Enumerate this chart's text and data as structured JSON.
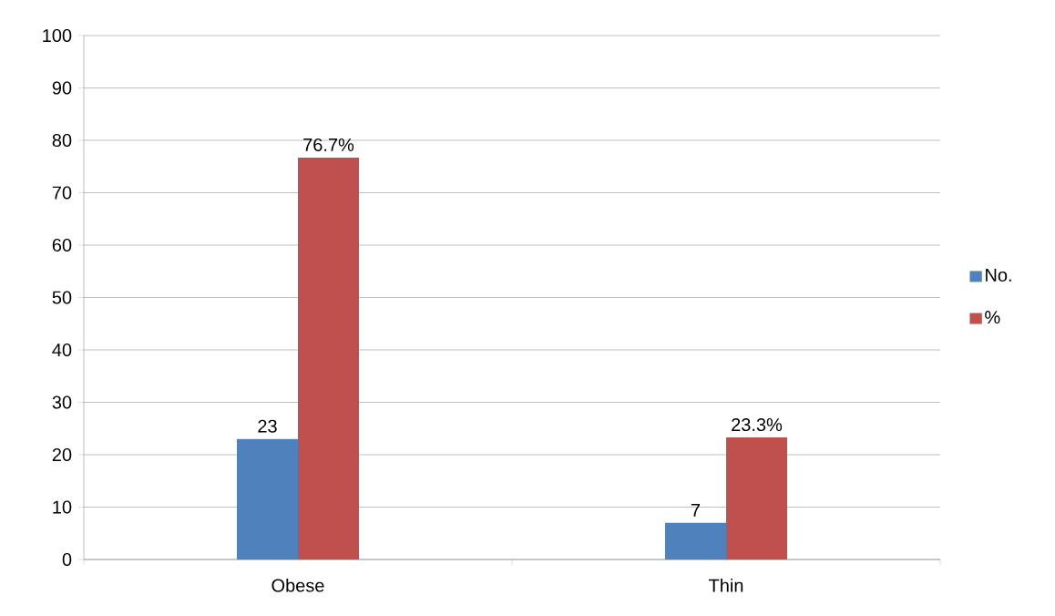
{
  "chart_data": {
    "type": "bar",
    "categories": [
      "Obese",
      "Thin"
    ],
    "series": [
      {
        "name": "No.",
        "color": "#4f81bd",
        "values": [
          23,
          7
        ],
        "value_labels": [
          "23",
          "7"
        ]
      },
      {
        "name": "%",
        "color": "#c0504d",
        "values": [
          76.7,
          23.3
        ],
        "value_labels": [
          "76.7%",
          "23.3%"
        ]
      }
    ],
    "ylim": [
      0,
      100
    ],
    "yticks": [
      0,
      10,
      20,
      30,
      40,
      50,
      60,
      70,
      80,
      90,
      100
    ],
    "grid": "y",
    "legend": "right"
  }
}
